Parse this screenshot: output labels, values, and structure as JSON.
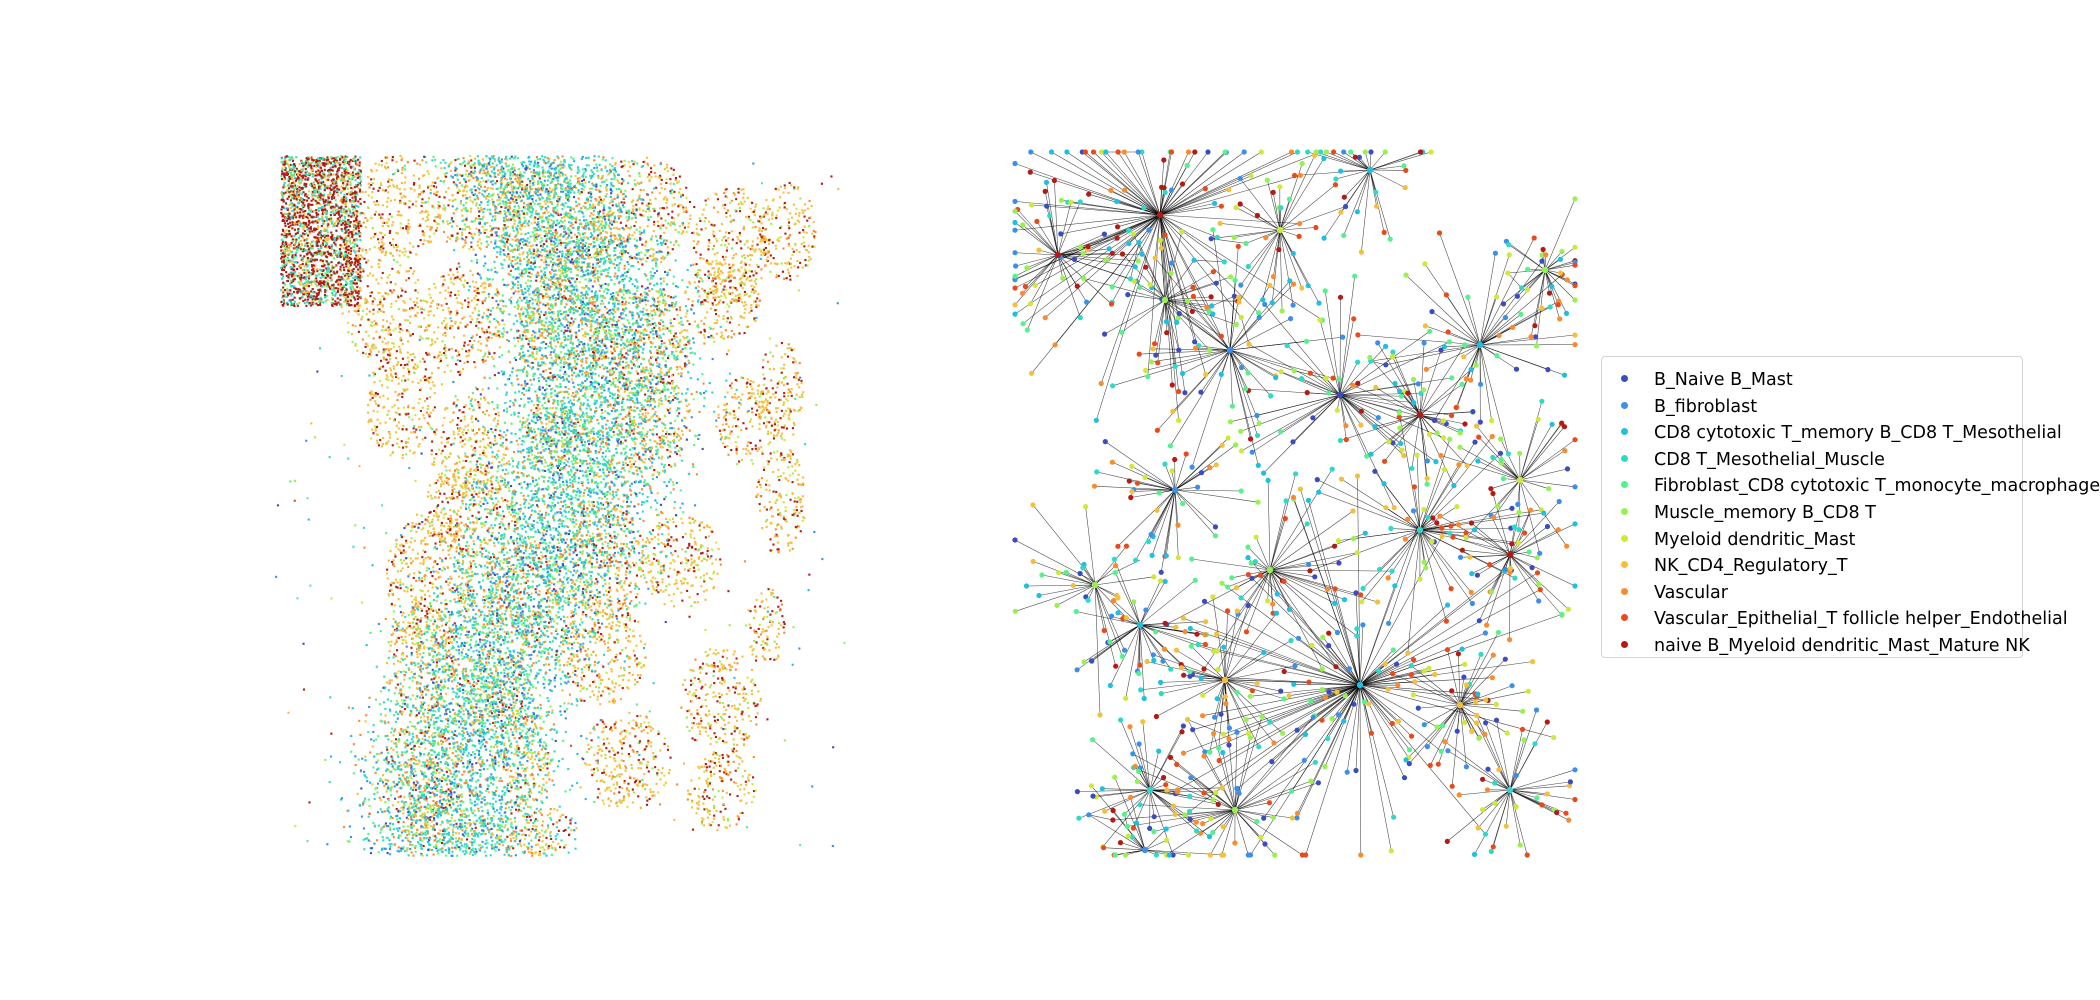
{
  "chart_data": [
    {
      "type": "scatter",
      "panel": "spatial cell-type map",
      "title": "",
      "xlabel": "",
      "ylabel": "",
      "axes_visible": false,
      "grid": false,
      "point_size": "tiny",
      "dominant_types": [
        "NK_CD4_Regulatory_T",
        "naive B_Myeloid dendritic_Mast_Mature NK",
        "CD8 T_Mesothelial_Muscle",
        "Fibroblast_CD8 cytotoxic T_monocyte_macrophage",
        "Vascular",
        "B_fibroblast"
      ]
    },
    {
      "type": "scatter",
      "panel": "cell neighbourhood graph",
      "title": "",
      "xlabel": "",
      "ylabel": "",
      "axes_visible": false,
      "grid": false,
      "edge_color": "#000000",
      "node_size": "small"
    }
  ],
  "legend": {
    "placement": "center-right",
    "items": [
      {
        "label": "B_Naive B_Mast",
        "color": "#3b4cc0"
      },
      {
        "label": "B_fibroblast",
        "color": "#3c8fe8"
      },
      {
        "label": "CD8 cytotoxic T_memory B_CD8 T_Mesothelial",
        "color": "#1fbfe0"
      },
      {
        "label": "CD8 T_Mesothelial_Muscle",
        "color": "#2fd9c9"
      },
      {
        "label": "Fibroblast_CD8 cytotoxic T_monocyte_macrophage",
        "color": "#55f28c"
      },
      {
        "label": "Muscle_memory B_CD8 T",
        "color": "#96f24f"
      },
      {
        "label": "Myeloid dendritic_Mast",
        "color": "#cfe839"
      },
      {
        "label": "NK_CD4_Regulatory_T",
        "color": "#f5bf3b"
      },
      {
        "label": "Vascular",
        "color": "#f98a2e"
      },
      {
        "label": "Vascular_Epithelial_T follicle helper_Endothelial",
        "color": "#e84a1c"
      },
      {
        "label": "naive B_Myeloid dendritic_Mast_Mature NK",
        "color": "#b31a14"
      }
    ]
  }
}
